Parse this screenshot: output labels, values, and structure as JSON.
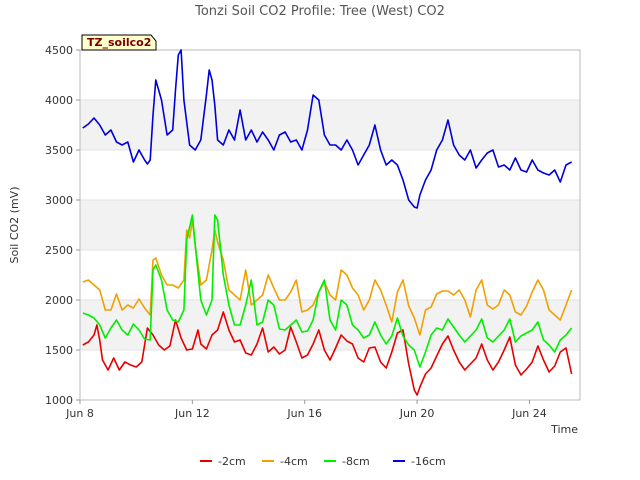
{
  "chart_data": {
    "type": "line",
    "title": "Tonzi Soil CO2 Profile: Tree (West) CO2",
    "tag": "TZ_soilco2",
    "xlabel": "Time",
    "ylabel": "Soil CO2 (mV)",
    "xlim": [
      8,
      25.8
    ],
    "ylim": [
      1000,
      4500
    ],
    "yticks": [
      1000,
      1500,
      2000,
      2500,
      3000,
      3500,
      4000,
      4500
    ],
    "xticks": [
      {
        "value": 8,
        "label": "Jun 8"
      },
      {
        "value": 12,
        "label": "Jun 12"
      },
      {
        "value": 16,
        "label": "Jun 16"
      },
      {
        "value": 20,
        "label": "Jun 20"
      },
      {
        "value": 24,
        "label": "Jun 24"
      }
    ],
    "bands": [
      [
        1500,
        2000
      ],
      [
        2500,
        3000
      ],
      [
        3500,
        4000
      ]
    ],
    "legend_position": "bottom",
    "series": [
      {
        "name": "-2cm",
        "color": "#e60000",
        "x": [
          8.1,
          8.3,
          8.5,
          8.6,
          8.7,
          8.8,
          9.0,
          9.2,
          9.4,
          9.6,
          9.8,
          10.0,
          10.2,
          10.4,
          10.6,
          10.8,
          11.0,
          11.2,
          11.4,
          11.6,
          11.8,
          12.0,
          12.2,
          12.3,
          12.5,
          12.7,
          12.9,
          13.1,
          13.3,
          13.5,
          13.7,
          13.9,
          14.1,
          14.3,
          14.5,
          14.7,
          14.9,
          15.1,
          15.3,
          15.5,
          15.7,
          15.9,
          16.1,
          16.3,
          16.5,
          16.7,
          16.9,
          17.1,
          17.3,
          17.5,
          17.7,
          17.9,
          18.1,
          18.3,
          18.5,
          18.7,
          18.9,
          19.1,
          19.3,
          19.5,
          19.7,
          19.8,
          19.9,
          20.0,
          20.1,
          20.3,
          20.5,
          20.7,
          20.9,
          21.1,
          21.3,
          21.5,
          21.7,
          21.9,
          22.1,
          22.3,
          22.5,
          22.7,
          22.9,
          23.1,
          23.3,
          23.5,
          23.7,
          23.9,
          24.1,
          24.3,
          24.5,
          24.7,
          24.9,
          25.1,
          25.3,
          25.5
        ],
        "values": [
          1550,
          1580,
          1650,
          1750,
          1600,
          1400,
          1300,
          1420,
          1300,
          1380,
          1350,
          1330,
          1380,
          1720,
          1650,
          1550,
          1500,
          1540,
          1800,
          1620,
          1500,
          1510,
          1700,
          1560,
          1510,
          1650,
          1700,
          1880,
          1700,
          1580,
          1600,
          1470,
          1450,
          1560,
          1720,
          1480,
          1530,
          1460,
          1500,
          1730,
          1580,
          1420,
          1450,
          1560,
          1700,
          1500,
          1400,
          1520,
          1650,
          1590,
          1560,
          1420,
          1380,
          1520,
          1530,
          1380,
          1320,
          1480,
          1670,
          1700,
          1360,
          1230,
          1100,
          1050,
          1130,
          1260,
          1320,
          1440,
          1560,
          1640,
          1500,
          1380,
          1300,
          1360,
          1420,
          1560,
          1400,
          1300,
          1380,
          1500,
          1630,
          1350,
          1250,
          1310,
          1380,
          1540,
          1400,
          1280,
          1340,
          1480,
          1520,
          1260
        ]
      },
      {
        "name": "-4cm",
        "color": "#f0a000",
        "x": [
          8.1,
          8.3,
          8.5,
          8.7,
          8.9,
          9.1,
          9.3,
          9.5,
          9.7,
          9.9,
          10.1,
          10.3,
          10.5,
          10.6,
          10.7,
          10.9,
          11.1,
          11.3,
          11.5,
          11.7,
          11.8,
          11.9,
          12.0,
          12.1,
          12.3,
          12.5,
          12.7,
          12.8,
          12.9,
          13.1,
          13.3,
          13.5,
          13.7,
          13.9,
          14.1,
          14.3,
          14.5,
          14.7,
          14.9,
          15.1,
          15.3,
          15.5,
          15.7,
          15.9,
          16.1,
          16.3,
          16.5,
          16.7,
          16.9,
          17.1,
          17.3,
          17.5,
          17.7,
          17.9,
          18.1,
          18.3,
          18.5,
          18.7,
          18.9,
          19.1,
          19.3,
          19.5,
          19.7,
          19.9,
          20.1,
          20.3,
          20.5,
          20.7,
          20.9,
          21.1,
          21.3,
          21.5,
          21.7,
          21.9,
          22.1,
          22.3,
          22.5,
          22.7,
          22.9,
          23.1,
          23.3,
          23.5,
          23.7,
          23.9,
          24.1,
          24.3,
          24.5,
          24.7,
          24.9,
          25.1,
          25.3,
          25.5
        ],
        "values": [
          2180,
          2200,
          2150,
          2100,
          1900,
          1900,
          2060,
          1900,
          1950,
          1920,
          2010,
          1920,
          1850,
          2400,
          2420,
          2250,
          2150,
          2150,
          2120,
          2200,
          2700,
          2620,
          2800,
          2550,
          2150,
          2200,
          2500,
          2700,
          2580,
          2400,
          2100,
          2050,
          2000,
          2300,
          1950,
          2000,
          2050,
          2250,
          2120,
          2000,
          2000,
          2080,
          2200,
          1880,
          1900,
          1950,
          2080,
          2180,
          2050,
          2000,
          2300,
          2250,
          2120,
          2050,
          1900,
          2000,
          2200,
          2100,
          1950,
          1780,
          2080,
          2200,
          1940,
          1820,
          1650,
          1900,
          1930,
          2060,
          2090,
          2090,
          2050,
          2100,
          2000,
          1830,
          2100,
          2200,
          1950,
          1910,
          1950,
          2100,
          2050,
          1880,
          1850,
          1940,
          2080,
          2200,
          2100,
          1900,
          1850,
          1800,
          1950,
          2100
        ]
      },
      {
        "name": "-8cm",
        "color": "#00ee00",
        "x": [
          8.1,
          8.3,
          8.5,
          8.7,
          8.9,
          9.1,
          9.3,
          9.5,
          9.7,
          9.9,
          10.1,
          10.3,
          10.5,
          10.6,
          10.7,
          10.9,
          11.1,
          11.3,
          11.5,
          11.7,
          11.8,
          11.9,
          12.0,
          12.1,
          12.3,
          12.5,
          12.7,
          12.8,
          12.9,
          13.1,
          13.3,
          13.5,
          13.7,
          13.9,
          14.1,
          14.3,
          14.5,
          14.7,
          14.9,
          15.1,
          15.3,
          15.5,
          15.7,
          15.9,
          16.1,
          16.3,
          16.5,
          16.7,
          16.9,
          17.1,
          17.3,
          17.5,
          17.7,
          17.9,
          18.1,
          18.3,
          18.5,
          18.7,
          18.9,
          19.1,
          19.3,
          19.5,
          19.7,
          19.9,
          20.1,
          20.3,
          20.5,
          20.7,
          20.9,
          21.1,
          21.3,
          21.5,
          21.7,
          21.9,
          22.1,
          22.3,
          22.5,
          22.7,
          22.9,
          23.1,
          23.3,
          23.5,
          23.7,
          23.9,
          24.1,
          24.3,
          24.5,
          24.7,
          24.9,
          25.1,
          25.3,
          25.5
        ],
        "values": [
          1870,
          1850,
          1820,
          1750,
          1620,
          1720,
          1800,
          1700,
          1650,
          1760,
          1700,
          1610,
          1600,
          2300,
          2350,
          2200,
          1900,
          1800,
          1780,
          1900,
          2600,
          2730,
          2850,
          2550,
          2000,
          1850,
          2000,
          2850,
          2800,
          2250,
          1950,
          1750,
          1750,
          1950,
          2200,
          1750,
          1780,
          2000,
          1950,
          1710,
          1700,
          1750,
          1800,
          1680,
          1690,
          1800,
          2080,
          2200,
          1800,
          1700,
          2000,
          1950,
          1750,
          1700,
          1620,
          1650,
          1780,
          1650,
          1560,
          1640,
          1820,
          1640,
          1550,
          1500,
          1330,
          1480,
          1650,
          1720,
          1700,
          1810,
          1730,
          1650,
          1580,
          1640,
          1700,
          1810,
          1620,
          1580,
          1640,
          1700,
          1810,
          1580,
          1640,
          1670,
          1700,
          1780,
          1600,
          1550,
          1480,
          1600,
          1650,
          1720
        ]
      },
      {
        "name": "-16cm",
        "color": "#0000dd",
        "x": [
          8.1,
          8.3,
          8.5,
          8.7,
          8.9,
          9.1,
          9.3,
          9.5,
          9.7,
          9.9,
          10.1,
          10.3,
          10.4,
          10.5,
          10.6,
          10.7,
          10.9,
          11.1,
          11.3,
          11.4,
          11.5,
          11.6,
          11.7,
          11.9,
          12.1,
          12.3,
          12.5,
          12.6,
          12.7,
          12.8,
          12.9,
          13.1,
          13.3,
          13.5,
          13.7,
          13.9,
          14.1,
          14.3,
          14.5,
          14.7,
          14.9,
          15.1,
          15.3,
          15.5,
          15.7,
          15.9,
          16.1,
          16.3,
          16.5,
          16.7,
          16.9,
          17.1,
          17.3,
          17.5,
          17.7,
          17.9,
          18.1,
          18.3,
          18.5,
          18.7,
          18.9,
          19.1,
          19.3,
          19.5,
          19.7,
          19.9,
          20.0,
          20.1,
          20.3,
          20.5,
          20.7,
          20.9,
          21.1,
          21.3,
          21.5,
          21.7,
          21.9,
          22.1,
          22.3,
          22.5,
          22.7,
          22.9,
          23.1,
          23.3,
          23.5,
          23.7,
          23.9,
          24.1,
          24.3,
          24.5,
          24.7,
          24.9,
          25.1,
          25.3,
          25.5
        ],
        "values": [
          3720,
          3760,
          3820,
          3750,
          3650,
          3700,
          3580,
          3550,
          3580,
          3380,
          3500,
          3400,
          3360,
          3400,
          3850,
          4200,
          4000,
          3650,
          3700,
          4100,
          4450,
          4500,
          4000,
          3550,
          3500,
          3600,
          4050,
          4300,
          4200,
          3950,
          3600,
          3550,
          3700,
          3600,
          3900,
          3600,
          3700,
          3580,
          3680,
          3600,
          3500,
          3650,
          3680,
          3580,
          3600,
          3500,
          3700,
          4050,
          4000,
          3650,
          3550,
          3550,
          3500,
          3600,
          3500,
          3350,
          3450,
          3550,
          3750,
          3500,
          3350,
          3400,
          3350,
          3200,
          3000,
          2930,
          2920,
          3050,
          3200,
          3300,
          3500,
          3600,
          3800,
          3550,
          3450,
          3400,
          3500,
          3320,
          3400,
          3470,
          3500,
          3330,
          3350,
          3300,
          3420,
          3300,
          3280,
          3400,
          3300,
          3270,
          3250,
          3300,
          3180,
          3350,
          3380
        ]
      }
    ]
  }
}
